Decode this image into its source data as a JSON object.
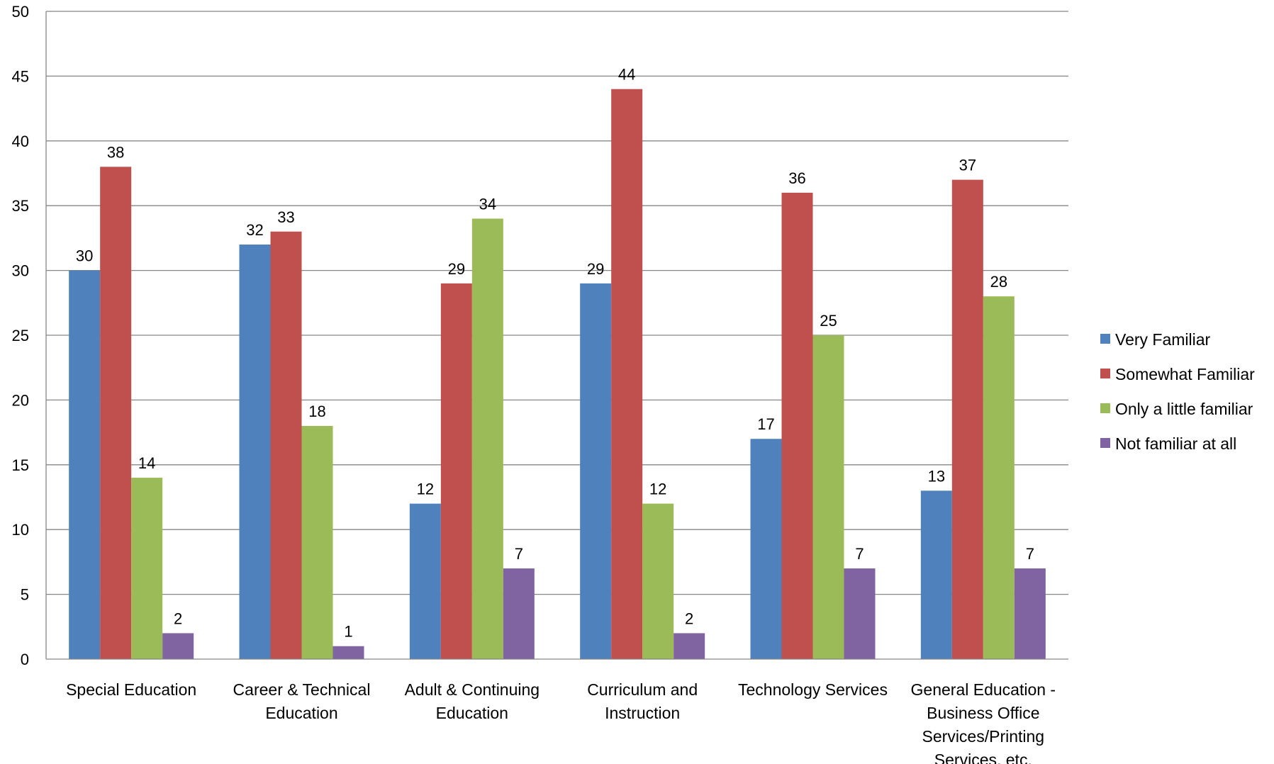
{
  "chart_data": {
    "type": "bar",
    "title": "",
    "xlabel": "",
    "ylabel": "",
    "ylim": [
      0,
      50
    ],
    "y_ticks": [
      "0",
      "5",
      "10",
      "15",
      "20",
      "25",
      "30",
      "35",
      "40",
      "45",
      "50"
    ],
    "y_tick_values": [
      0,
      5,
      10,
      15,
      20,
      25,
      30,
      35,
      40,
      45,
      50
    ],
    "grid": "horizontal",
    "legend_position": "right",
    "categories": [
      [
        "Special Education"
      ],
      [
        "Career & Technical",
        "Education"
      ],
      [
        "Adult & Continuing",
        "Education"
      ],
      [
        "Curriculum and",
        "Instruction"
      ],
      [
        "Technology Services"
      ],
      [
        "General Education -",
        "Business Office",
        "Services/Printing",
        "Services, etc."
      ]
    ],
    "series": [
      {
        "name": "Very Familiar",
        "color": "#4F81BD",
        "values": [
          30,
          32,
          12,
          29,
          17,
          13
        ]
      },
      {
        "name": "Somewhat Familiar",
        "color": "#C0504D",
        "values": [
          38,
          33,
          29,
          44,
          36,
          37
        ]
      },
      {
        "name": "Only a little familiar",
        "color": "#9BBB59",
        "values": [
          14,
          18,
          34,
          12,
          25,
          28
        ]
      },
      {
        "name": "Not familiar at all",
        "color": "#8064A2",
        "values": [
          2,
          1,
          7,
          2,
          7,
          7
        ]
      }
    ]
  }
}
